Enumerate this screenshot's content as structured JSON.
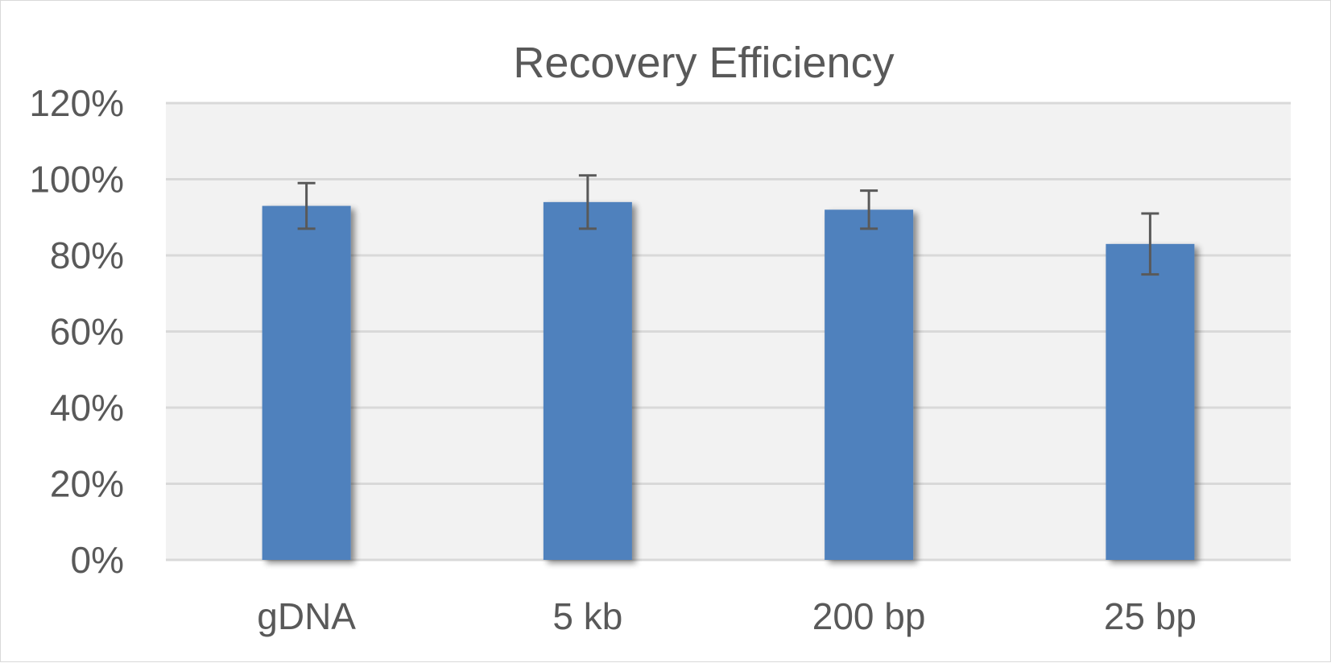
{
  "chart_data": {
    "type": "bar",
    "title": "Recovery Efficiency",
    "xlabel": "",
    "ylabel": "",
    "categories": [
      "gDNA",
      "5 kb",
      "200 bp",
      "25 bp"
    ],
    "values": [
      93,
      94,
      92,
      83
    ],
    "error_bars": [
      {
        "low": 87,
        "high": 99
      },
      {
        "low": 87,
        "high": 101
      },
      {
        "low": 87,
        "high": 97
      },
      {
        "low": 75,
        "high": 91
      }
    ],
    "y_unit": "percent",
    "ylim": [
      0,
      120
    ],
    "yticks": [
      0,
      20,
      40,
      60,
      80,
      100,
      120
    ],
    "ytick_labels": [
      "0%",
      "20%",
      "40%",
      "60%",
      "80%",
      "100%",
      "120%"
    ],
    "grid": true,
    "legend": "none",
    "colors": {
      "bar": "#4f81bd",
      "plot_background": "#f2f2f2",
      "gridline": "#d9d9d9",
      "error_bar": "#595959",
      "text": "#595959"
    }
  }
}
